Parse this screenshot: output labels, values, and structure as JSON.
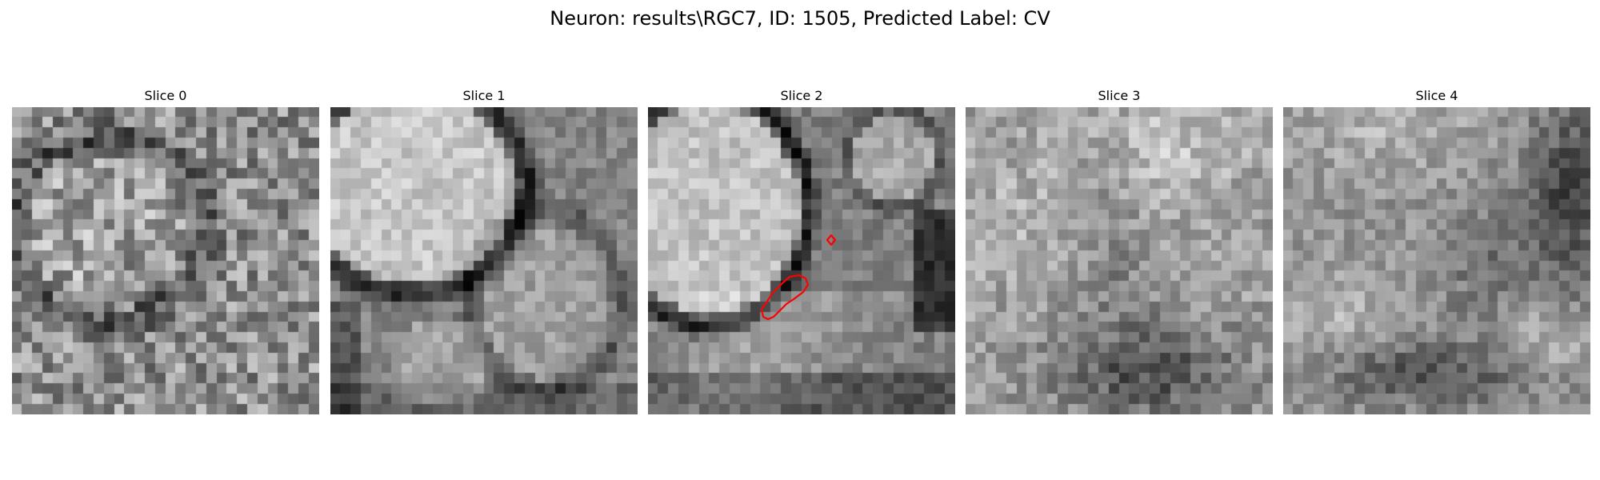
{
  "figure": {
    "title": "Neuron: results\\RGC7, ID: 1505, Predicted Label: CV"
  },
  "panels": [
    {
      "title": "Slice 0",
      "colormap": "gray",
      "contour": false
    },
    {
      "title": "Slice 1",
      "colormap": "gray",
      "contour": false
    },
    {
      "title": "Slice 2",
      "colormap": "gray",
      "contour": true,
      "contour_color": "#ff0000"
    },
    {
      "title": "Slice 3",
      "colormap": "gray",
      "contour": false
    },
    {
      "title": "Slice 4",
      "colormap": "gray",
      "contour": false
    }
  ]
}
